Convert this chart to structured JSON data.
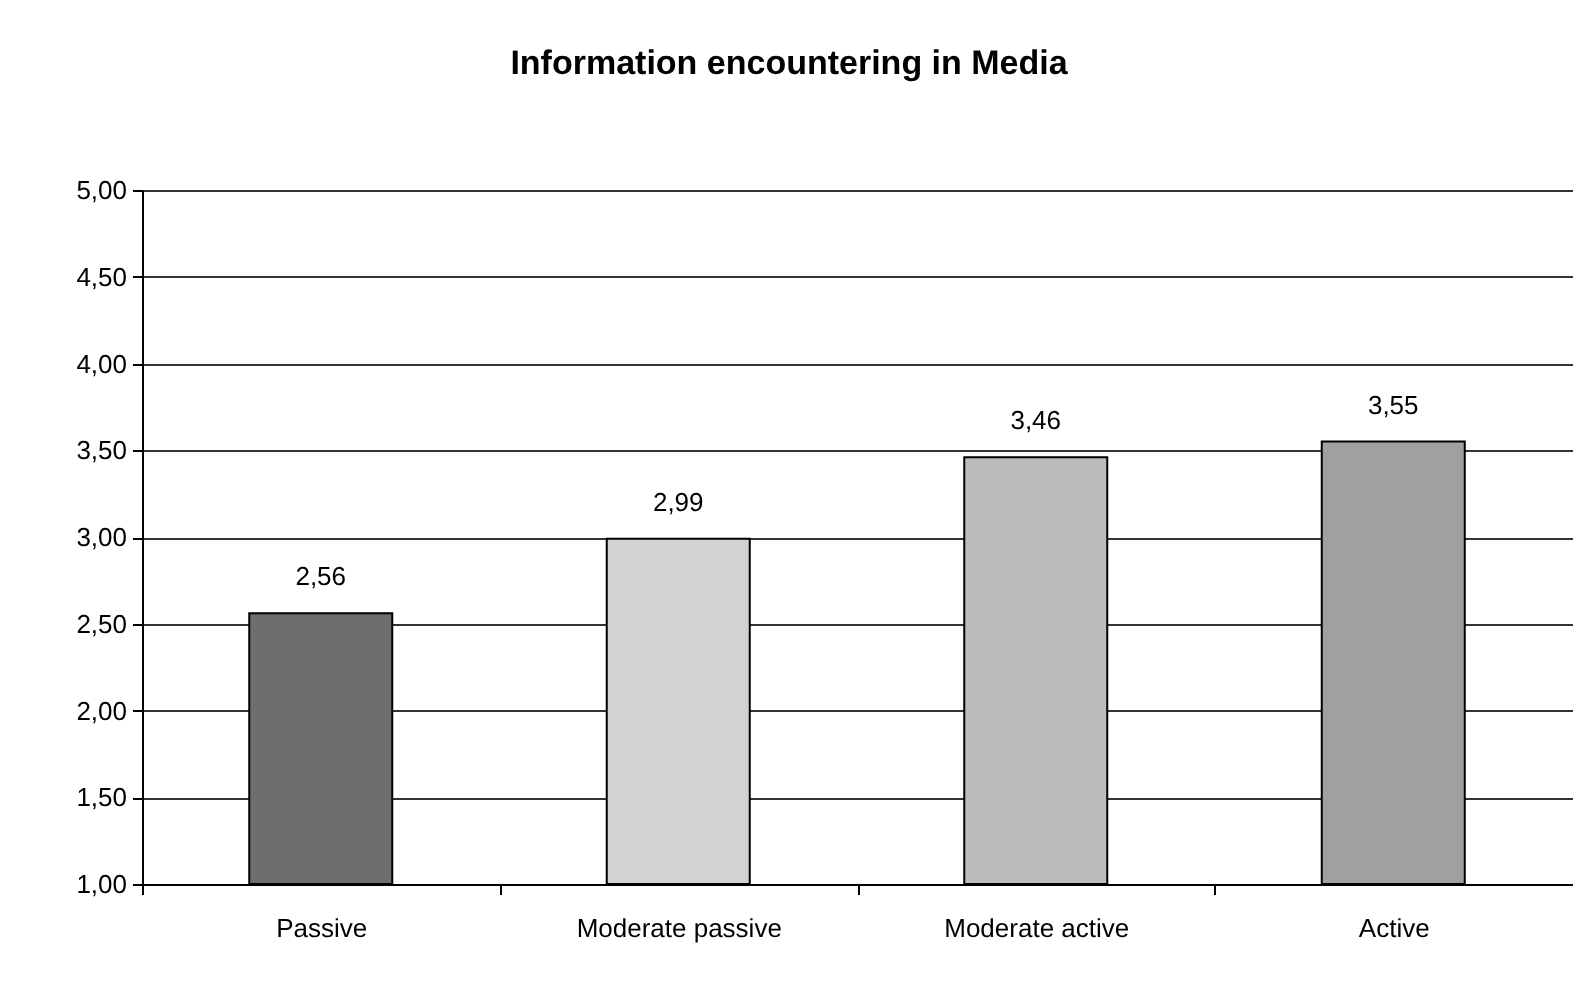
{
  "chart_data": {
    "type": "bar",
    "title": "Information encountering in Media",
    "categories": [
      "Passive",
      "Moderate passive",
      "Moderate active",
      "Active"
    ],
    "values": [
      2.56,
      2.99,
      3.46,
      3.55
    ],
    "colors": [
      "#6e6e6e",
      "#d2d2d2",
      "#bcbcbc",
      "#a0a0a0"
    ],
    "value_labels": [
      "2,56",
      "2,99",
      "3,46",
      "3,55"
    ],
    "ylim": [
      1,
      5
    ],
    "yticks": [
      {
        "value": 1,
        "label": "1,00"
      },
      {
        "value": 1.5,
        "label": "1,50"
      },
      {
        "value": 2,
        "label": "2,00"
      },
      {
        "value": 2.5,
        "label": "2,50"
      },
      {
        "value": 3,
        "label": "3,00"
      },
      {
        "value": 3.5,
        "label": "3,50"
      },
      {
        "value": 4,
        "label": "4,00"
      },
      {
        "value": 4.5,
        "label": "4,50"
      },
      {
        "value": 5,
        "label": "5,00"
      }
    ],
    "grid": "y"
  }
}
